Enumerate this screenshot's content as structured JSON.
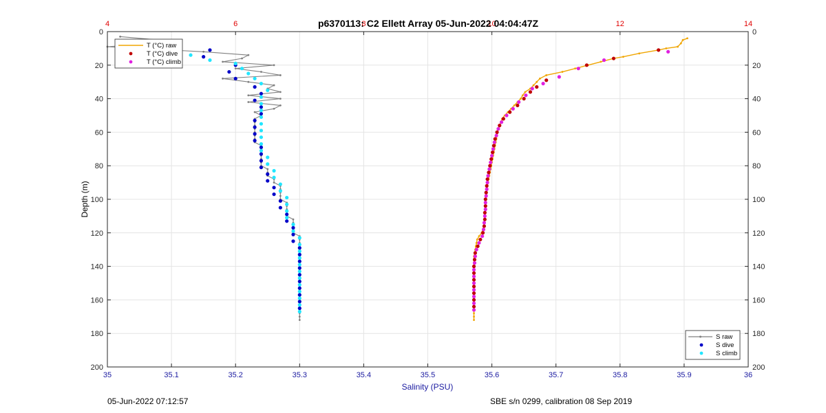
{
  "chart_data": {
    "type": "scatter",
    "title": "p6370113: C2 Ellett Array 05-Jun-2022 04:04:47Z",
    "xlabel": "Salinity (PSU)",
    "ylabel": "Depth (m)",
    "x_bottom_lim": [
      35,
      36
    ],
    "x_bottom_ticks": [
      "35",
      "35.1",
      "35.2",
      "35.3",
      "35.4",
      "35.5",
      "35.6",
      "35.7",
      "35.8",
      "35.9",
      "36"
    ],
    "x_top_lim": [
      4,
      14
    ],
    "x_top_ticks": [
      "4",
      "6",
      "8",
      "10",
      "12",
      "14"
    ],
    "y_lim": [
      0,
      200
    ],
    "y_reversed": true,
    "y_ticks": [
      "0",
      "20",
      "40",
      "60",
      "80",
      "100",
      "120",
      "140",
      "160",
      "180",
      "200"
    ],
    "grid": true,
    "legends": {
      "temperature": {
        "placement": "top-left",
        "entries": [
          "T (°C) raw",
          "T (°C) dive",
          "T (°C) climb"
        ]
      },
      "salinity": {
        "placement": "bottom-right",
        "entries": [
          "S raw",
          "S dive",
          "S climb"
        ]
      }
    },
    "colors": {
      "t_raw": "#f0a500",
      "t_dive": "#c00000",
      "t_climb": "#e020e0",
      "s_raw": "#808080",
      "s_dive": "#0000c8",
      "s_climb": "#22e6ff",
      "top_axis": "#e00000",
      "bottom_axis": "#1a1aa0"
    },
    "series": [
      {
        "name": "T (°C) raw",
        "axis": "top",
        "style": "line-marker",
        "depth": [
          4,
          5,
          7,
          9,
          10,
          11,
          13,
          15,
          16,
          18,
          20,
          22,
          24,
          26,
          28,
          30,
          32,
          34,
          36,
          38,
          40,
          42,
          44,
          46,
          48,
          50,
          52,
          54,
          56,
          58,
          60,
          62,
          64,
          66,
          68,
          70,
          72,
          74,
          76,
          78,
          80,
          82,
          84,
          86,
          88,
          90,
          92,
          94,
          96,
          98,
          100,
          102,
          104,
          106,
          108,
          110,
          112,
          114,
          116,
          118,
          120,
          122,
          124,
          126,
          128,
          130,
          132,
          134,
          136,
          138,
          140,
          142,
          144,
          146,
          148,
          150,
          152,
          154,
          156,
          158,
          160,
          162,
          164,
          166,
          168,
          170,
          172
        ],
        "values": [
          13.05,
          12.98,
          12.95,
          12.9,
          12.72,
          12.6,
          12.3,
          12.05,
          11.9,
          11.7,
          11.5,
          11.3,
          11.1,
          10.85,
          10.75,
          10.7,
          10.65,
          10.6,
          10.52,
          10.48,
          10.45,
          10.4,
          10.35,
          10.3,
          10.25,
          10.2,
          10.16,
          10.14,
          10.12,
          10.1,
          10.09,
          10.08,
          10.07,
          10.06,
          10.05,
          10.04,
          10.03,
          10.02,
          10.01,
          10.0,
          9.99,
          9.98,
          9.97,
          9.96,
          9.95,
          9.94,
          9.93,
          9.92,
          9.92,
          9.91,
          9.91,
          9.9,
          9.9,
          9.9,
          9.9,
          9.89,
          9.89,
          9.88,
          9.87,
          9.86,
          9.84,
          9.8,
          9.77,
          9.76,
          9.75,
          9.74,
          9.73,
          9.72,
          9.72,
          9.72,
          9.72,
          9.72,
          9.72,
          9.72,
          9.72,
          9.72,
          9.72,
          9.72,
          9.72,
          9.72,
          9.72,
          9.72,
          9.72,
          9.72,
          9.72,
          9.72,
          9.72
        ]
      },
      {
        "name": "T (°C) dive",
        "axis": "top",
        "style": "marker",
        "depth": [
          11,
          16,
          20,
          29,
          33,
          36,
          40,
          44,
          48,
          52,
          56,
          60,
          64,
          68,
          72,
          76,
          80,
          84,
          88,
          92,
          96,
          100,
          104,
          108,
          112,
          116,
          120,
          124,
          128,
          132,
          136,
          140,
          144,
          148,
          152,
          156,
          160,
          164
        ],
        "values": [
          12.6,
          11.9,
          11.48,
          10.85,
          10.7,
          10.6,
          10.5,
          10.4,
          10.28,
          10.18,
          10.12,
          10.08,
          10.05,
          10.03,
          10.01,
          9.99,
          9.97,
          9.95,
          9.93,
          9.92,
          9.91,
          9.9,
          9.9,
          9.89,
          9.89,
          9.88,
          9.86,
          9.82,
          9.78,
          9.74,
          9.73,
          9.72,
          9.72,
          9.72,
          9.72,
          9.72,
          9.72,
          9.72
        ]
      },
      {
        "name": "T (°C) climb",
        "axis": "top",
        "style": "marker",
        "depth": [
          12,
          17,
          22,
          27,
          31,
          34,
          38,
          42,
          46,
          50,
          54,
          58,
          62,
          66,
          70,
          74,
          78,
          82,
          86,
          90,
          94,
          98,
          102,
          106,
          110,
          114,
          118,
          122,
          126,
          130,
          134,
          138,
          142,
          146,
          150,
          154,
          158,
          162,
          166
        ],
        "values": [
          12.75,
          11.75,
          11.35,
          11.05,
          10.8,
          10.63,
          10.53,
          10.42,
          10.33,
          10.23,
          10.15,
          10.1,
          10.07,
          10.04,
          10.02,
          10.0,
          9.98,
          9.96,
          9.94,
          9.93,
          9.92,
          9.91,
          9.9,
          9.9,
          9.89,
          9.88,
          9.87,
          9.85,
          9.8,
          9.76,
          9.74,
          9.73,
          9.72,
          9.72,
          9.72,
          9.72,
          9.72,
          9.72,
          9.72
        ]
      },
      {
        "name": "S raw",
        "axis": "bottom",
        "style": "line-marker",
        "depth": [
          3,
          6,
          9,
          12,
          14,
          16,
          18,
          20,
          22,
          24,
          26,
          28,
          30,
          32,
          34,
          36,
          38,
          40,
          42,
          44,
          46,
          48,
          50,
          52,
          54,
          56,
          58,
          60,
          62,
          64,
          66,
          68,
          70,
          72,
          74,
          76,
          78,
          80,
          82,
          84,
          86,
          88,
          90,
          92,
          94,
          96,
          98,
          100,
          102,
          104,
          106,
          108,
          110,
          112,
          114,
          116,
          118,
          120,
          122,
          124,
          126,
          128,
          130,
          132,
          134,
          136,
          138,
          140,
          142,
          144,
          146,
          148,
          150,
          152,
          154,
          156,
          158,
          160,
          162,
          164,
          166,
          168,
          170,
          172
        ],
        "values": [
          35.02,
          35.11,
          35.0,
          35.15,
          35.22,
          35.21,
          35.18,
          35.26,
          35.2,
          35.24,
          35.27,
          35.18,
          35.22,
          35.26,
          35.25,
          35.27,
          35.22,
          35.27,
          35.22,
          35.27,
          35.26,
          35.23,
          35.24,
          35.23,
          35.23,
          35.23,
          35.23,
          35.23,
          35.23,
          35.23,
          35.23,
          35.24,
          35.24,
          35.24,
          35.24,
          35.24,
          35.24,
          35.24,
          35.25,
          35.25,
          35.25,
          35.26,
          35.26,
          35.27,
          35.27,
          35.27,
          35.27,
          35.27,
          35.28,
          35.28,
          35.28,
          35.28,
          35.28,
          35.29,
          35.29,
          35.29,
          35.29,
          35.29,
          35.3,
          35.3,
          35.3,
          35.3,
          35.3,
          35.3,
          35.3,
          35.3,
          35.3,
          35.3,
          35.3,
          35.3,
          35.3,
          35.3,
          35.3,
          35.3,
          35.3,
          35.3,
          35.3,
          35.3,
          35.3,
          35.3,
          35.3,
          35.3,
          35.3,
          35.3
        ]
      },
      {
        "name": "S dive",
        "axis": "bottom",
        "style": "marker",
        "depth": [
          11,
          15,
          20,
          24,
          28,
          33,
          37,
          41,
          45,
          49,
          53,
          57,
          61,
          65,
          69,
          73,
          77,
          81,
          85,
          89,
          93,
          97,
          101,
          105,
          109,
          113,
          117,
          121,
          125,
          129,
          133,
          137,
          141,
          145,
          149,
          153,
          157,
          161,
          165
        ],
        "values": [
          35.16,
          35.15,
          35.2,
          35.19,
          35.2,
          35.23,
          35.24,
          35.23,
          35.24,
          35.24,
          35.23,
          35.23,
          35.23,
          35.23,
          35.24,
          35.24,
          35.24,
          35.24,
          35.25,
          35.25,
          35.26,
          35.26,
          35.27,
          35.27,
          35.28,
          35.28,
          35.29,
          35.29,
          35.29,
          35.3,
          35.3,
          35.3,
          35.3,
          35.3,
          35.3,
          35.3,
          35.3,
          35.3,
          35.3
        ]
      },
      {
        "name": "S climb",
        "axis": "bottom",
        "style": "marker",
        "depth": [
          12,
          14,
          17,
          19,
          22,
          25,
          28,
          31,
          35,
          39,
          43,
          47,
          51,
          55,
          59,
          63,
          67,
          71,
          75,
          79,
          83,
          87,
          91,
          95,
          99,
          103,
          107,
          111,
          115,
          119,
          123,
          127,
          131,
          135,
          139,
          143,
          147,
          151,
          155,
          159,
          163,
          167
        ],
        "values": [
          35.06,
          35.13,
          35.16,
          35.2,
          35.21,
          35.22,
          35.23,
          35.24,
          35.25,
          35.24,
          35.24,
          35.24,
          35.24,
          35.24,
          35.24,
          35.24,
          35.24,
          35.24,
          35.25,
          35.25,
          35.26,
          35.26,
          35.27,
          35.27,
          35.28,
          35.28,
          35.28,
          35.28,
          35.29,
          35.29,
          35.3,
          35.3,
          35.3,
          35.3,
          35.3,
          35.3,
          35.3,
          35.3,
          35.3,
          35.3,
          35.3,
          35.3
        ]
      }
    ]
  },
  "footer": {
    "timestamp": "05-Jun-2022 07:12:57",
    "calibration": "SBE s/n 0299, calibration 08 Sep 2019"
  }
}
